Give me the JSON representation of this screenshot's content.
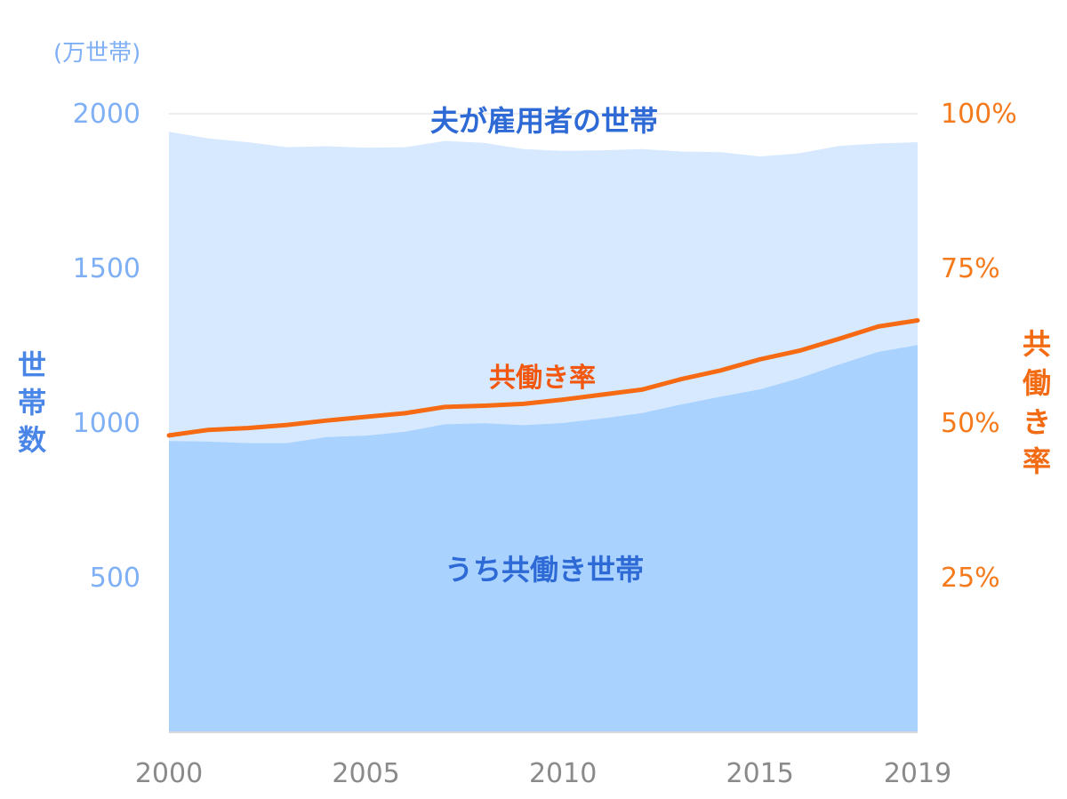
{
  "chart_data": {
    "type": "area",
    "x": [
      2000,
      2001,
      2002,
      2003,
      2004,
      2005,
      2006,
      2007,
      2008,
      2009,
      2010,
      2011,
      2012,
      2013,
      2014,
      2015,
      2016,
      2017,
      2018,
      2019
    ],
    "series": [
      {
        "name": "夫が雇用者の世帯",
        "axis": "left",
        "kind": "area",
        "color": "#d6e9ff",
        "values": [
          1942,
          1920,
          1908,
          1892,
          1895,
          1890,
          1892,
          1912,
          1906,
          1886,
          1880,
          1882,
          1886,
          1878,
          1876,
          1862,
          1872,
          1896,
          1904,
          1908
        ]
      },
      {
        "name": "うち共働き世帯",
        "axis": "left",
        "kind": "area",
        "color": "#a9d2ff",
        "values": [
          942,
          940,
          935,
          935,
          955,
          959,
          972,
          996,
          999,
          993,
          1000,
          1015,
          1032,
          1060,
          1085,
          1109,
          1145,
          1189,
          1230,
          1252
        ]
      },
      {
        "name": "共働き率",
        "axis": "right",
        "kind": "line",
        "color": "#f56a12",
        "values": [
          48.0,
          48.9,
          49.2,
          49.7,
          50.4,
          51.0,
          51.6,
          52.6,
          52.8,
          53.1,
          53.8,
          54.6,
          55.4,
          57.1,
          58.5,
          60.3,
          61.7,
          63.6,
          65.6,
          66.6
        ]
      }
    ],
    "x_ticks": [
      "2000",
      "2005",
      "2010",
      "2015",
      "2019"
    ],
    "y_left": {
      "label": "世帯数",
      "unit": "(万世帯)",
      "ylim": [
        0,
        2000
      ],
      "ticks": [
        "500",
        "1000",
        "1500",
        "2000"
      ]
    },
    "y_right": {
      "label": "共働き率",
      "ylim": [
        0,
        100
      ],
      "ticks": [
        "25%",
        "50%",
        "75%",
        "100%"
      ]
    },
    "grid": true
  }
}
